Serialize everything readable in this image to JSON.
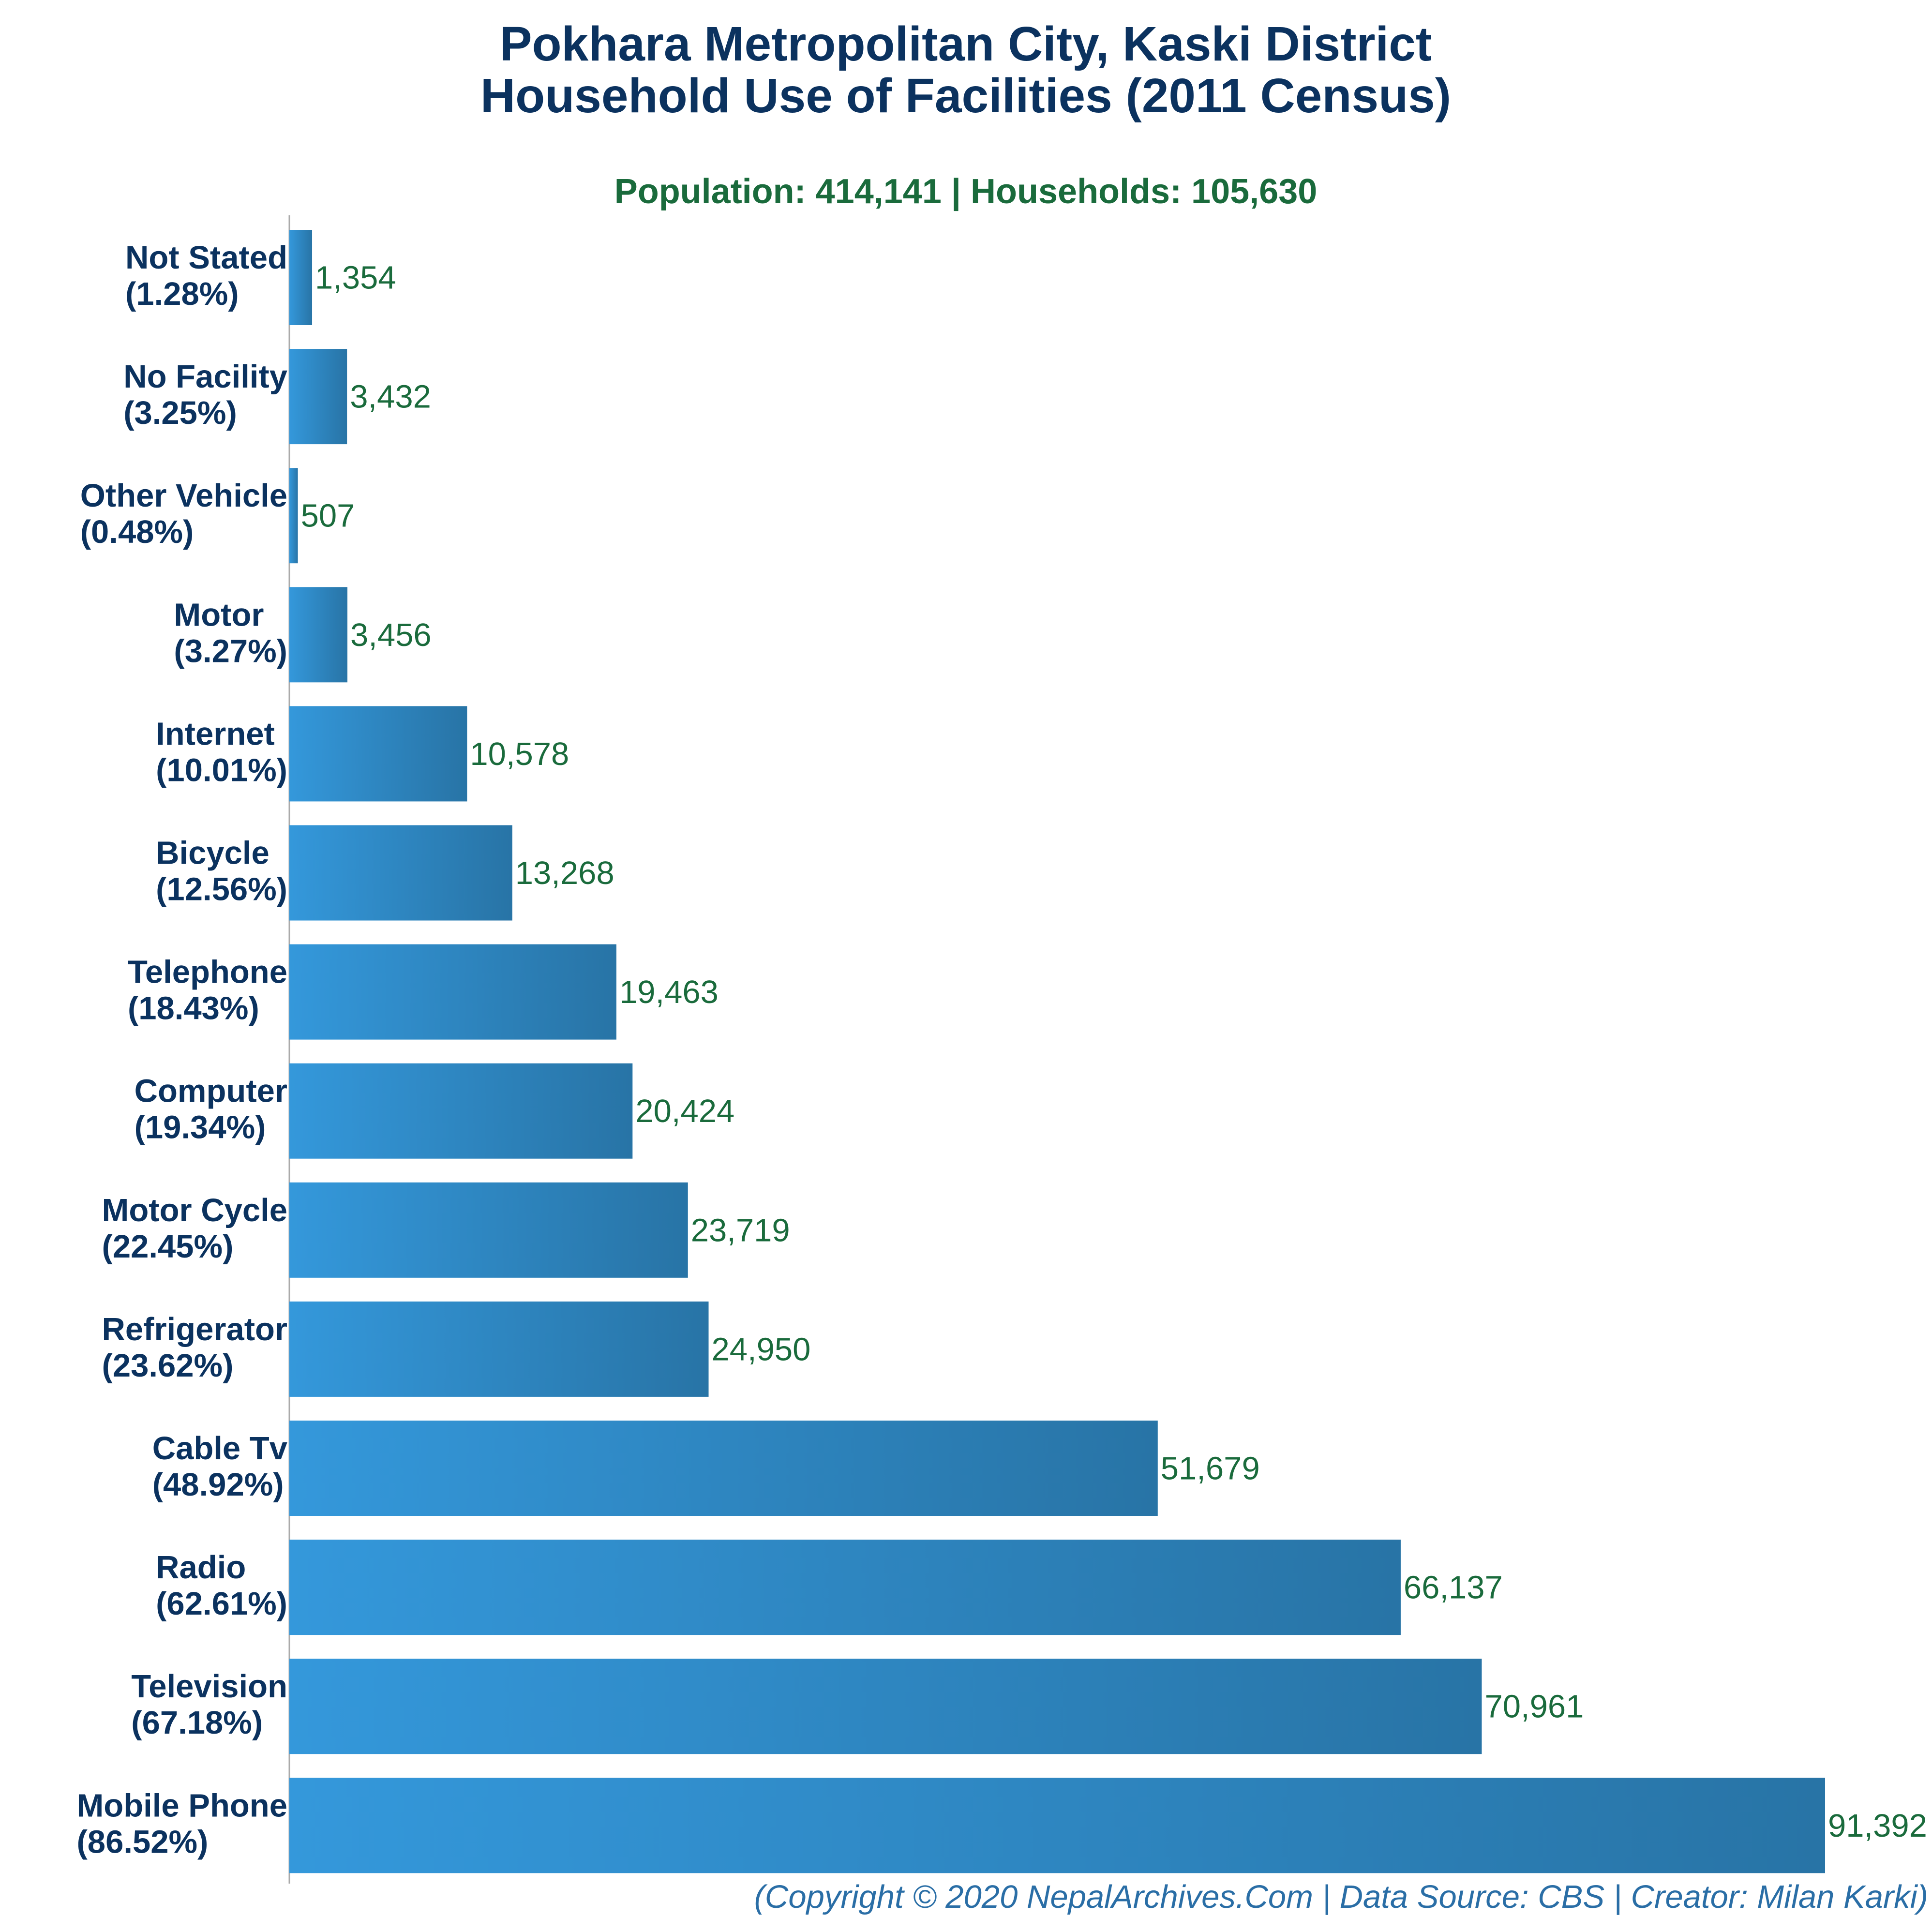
{
  "colors": {
    "title": "#0b325f",
    "subtitle": "#1a6b3c",
    "category_label": "#0b325f",
    "value_label": "#1a6b3c",
    "bar_light": "#3498db",
    "bar_dark": "#2874a6",
    "axis": "#aaaaaa",
    "footer": "#2a6ea6"
  },
  "chart_data": {
    "type": "bar",
    "orientation": "horizontal",
    "title": "Pokhara Metropolitan City, Kaski District",
    "title_line2": "Household Use of Facilities (2011 Census)",
    "subtitle": "Population: 414,141 | Households: 105,630",
    "footer": "(Copyright © 2020 NepalArchives.Com | Data Source: CBS | Creator: Milan Karki)",
    "xlim": [
      0,
      91392
    ],
    "grid": false,
    "categories": [
      "Not Stated",
      "No Facility",
      "Other Vehicle",
      "Motor",
      "Internet",
      "Bicycle",
      "Telephone",
      "Computer",
      "Motor Cycle",
      "Refrigerator",
      "Cable Tv",
      "Radio",
      "Television",
      "Mobile Phone"
    ],
    "percent_labels": [
      "(1.28%)",
      "(3.25%)",
      "(0.48%)",
      "(3.27%)",
      "(10.01%)",
      "(12.56%)",
      "(18.43%)",
      "(19.34%)",
      "(22.45%)",
      "(23.62%)",
      "(48.92%)",
      "(62.61%)",
      "(67.18%)",
      "(86.52%)"
    ],
    "values": [
      1354,
      3432,
      507,
      3456,
      10578,
      13268,
      19463,
      20424,
      23719,
      24950,
      51679,
      66137,
      70961,
      91392
    ],
    "value_labels": [
      "1,354",
      "3,432",
      "507",
      "3,456",
      "10,578",
      "13,268",
      "19,463",
      "20,424",
      "23,719",
      "24,950",
      "51,679",
      "66,137",
      "70,961",
      "91,392"
    ]
  }
}
